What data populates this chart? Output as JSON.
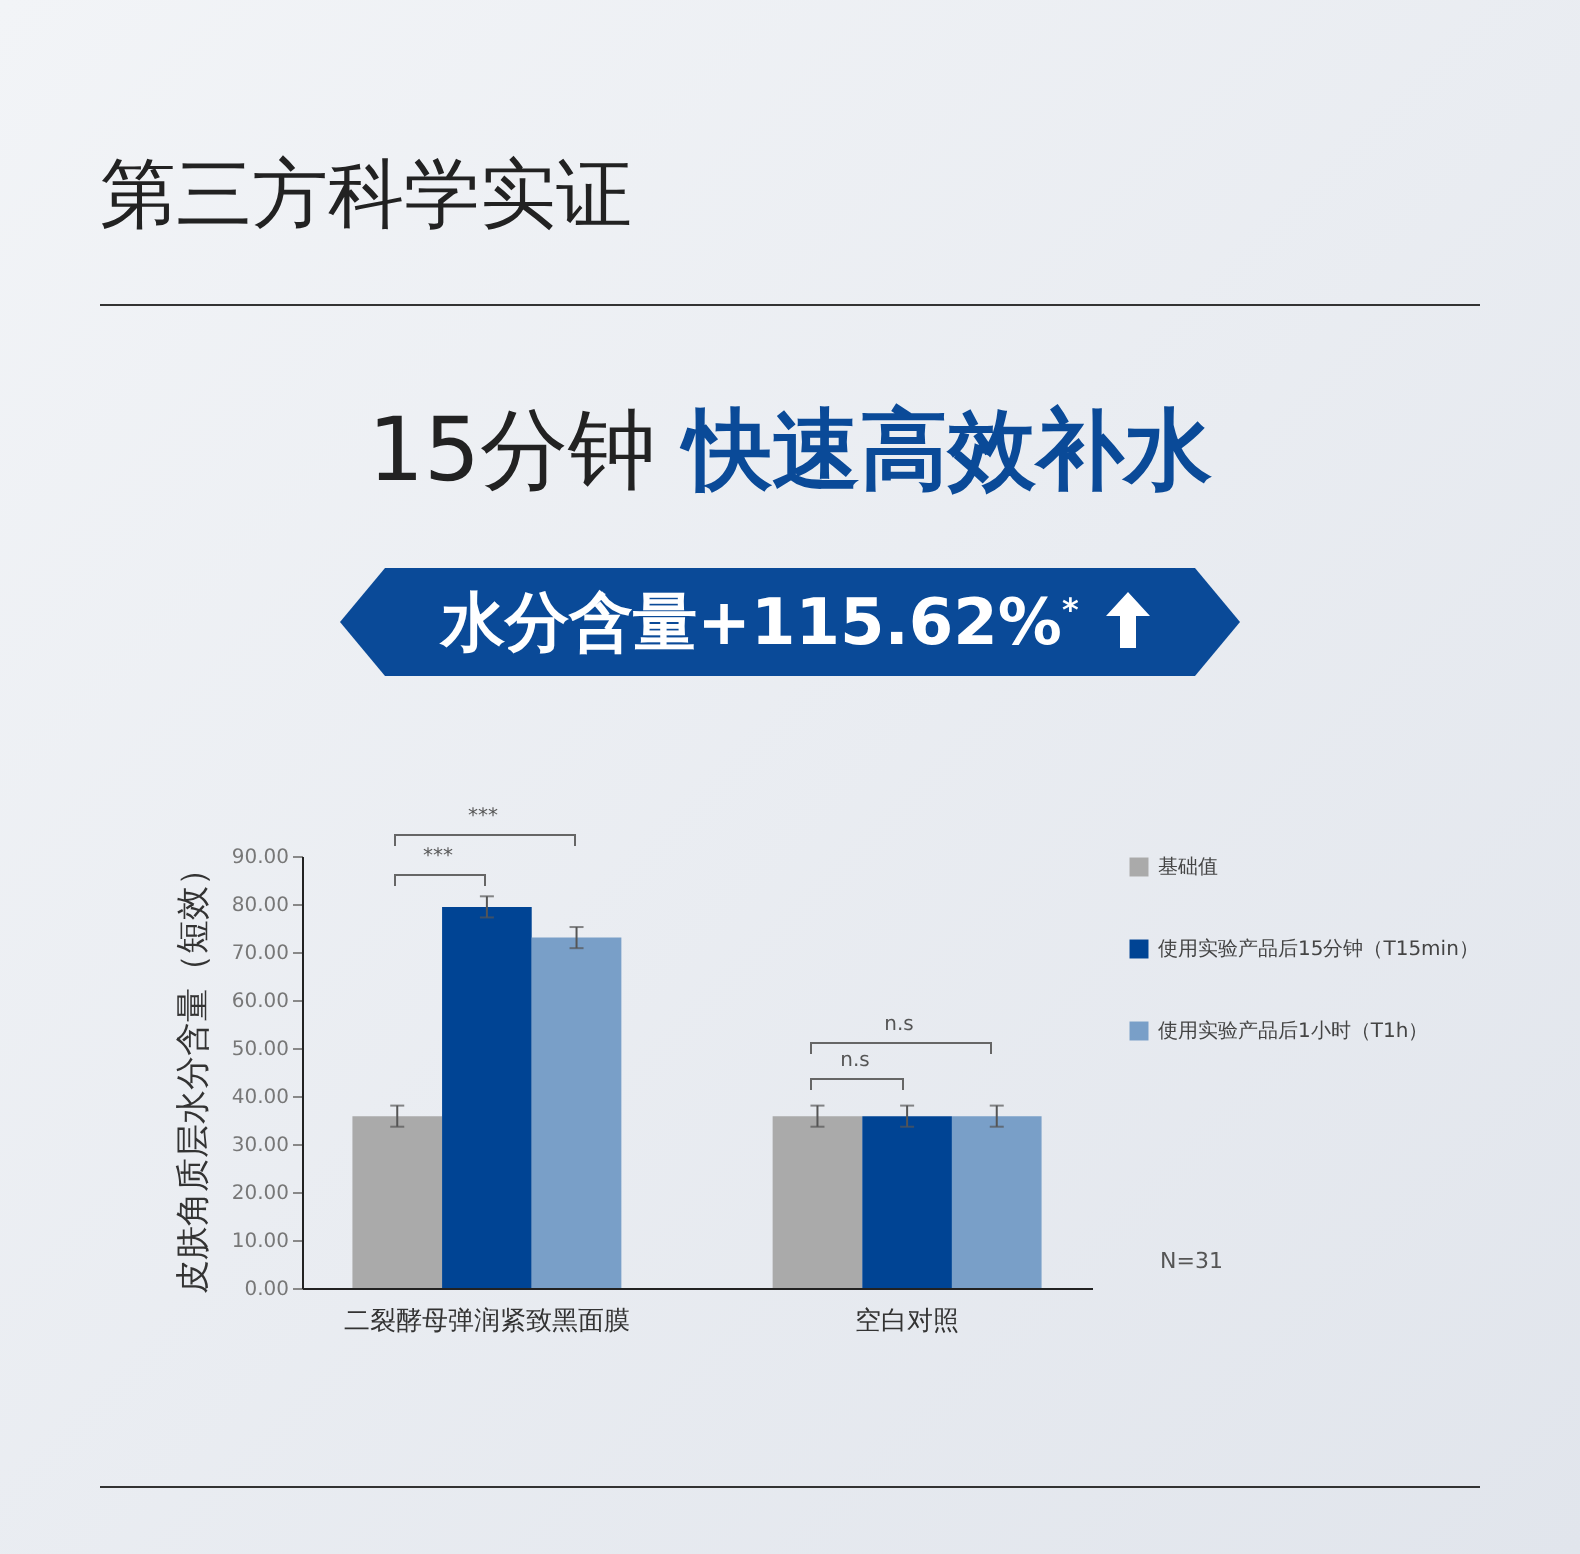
{
  "chart_data": {
    "type": "bar",
    "title": "第三方科学实证",
    "subtitle": "15分钟 快速高效补水",
    "ylabel": "皮肤角质层水分含量（短效）",
    "categories": [
      "二裂酵母弹润紧致黑面膜",
      "空白对照"
    ],
    "series": [
      {
        "name": "基础值",
        "color": "#aaaaaa",
        "values": [
          35.8,
          35.8
        ],
        "errors": [
          2.2,
          2.2
        ]
      },
      {
        "name": "使用实验产品后15分钟（T15min）",
        "color": "#004494",
        "values": [
          79.4,
          35.8
        ],
        "errors": [
          2.2,
          2.2
        ]
      },
      {
        "name": "使用实验产品后1小时（T1h）",
        "color": "#799fc8",
        "values": [
          73.0,
          35.8
        ],
        "errors": [
          2.2,
          2.2
        ]
      }
    ],
    "ylim": [
      0,
      90
    ],
    "yticks": [
      {
        "value": 0,
        "label": "0.00"
      },
      {
        "value": 10,
        "label": "10.00"
      },
      {
        "value": 20,
        "label": "20.00"
      },
      {
        "value": 30,
        "label": "30.00"
      },
      {
        "value": 40,
        "label": "40.00"
      },
      {
        "value": 50,
        "label": "50.00"
      },
      {
        "value": 60,
        "label": "60.00"
      },
      {
        "value": 70,
        "label": "70.00"
      },
      {
        "value": 80,
        "label": "80.00"
      },
      {
        "value": 90,
        "label": "90.00"
      }
    ],
    "legend": "right",
    "annotations": [
      "水分含量+115.62%$^{*}$",
      "***",
      "***",
      "n.s",
      "n.s",
      "N=31"
    ]
  }
}
